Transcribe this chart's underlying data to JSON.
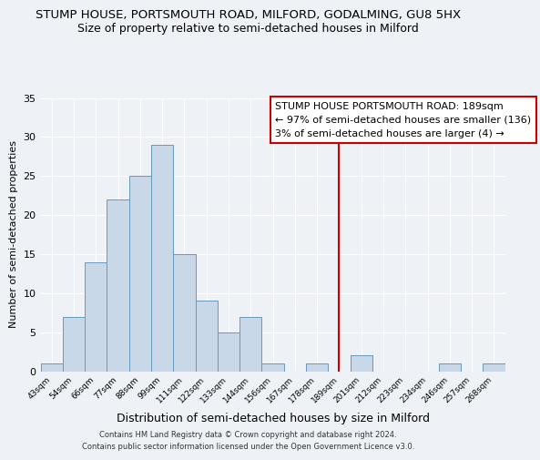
{
  "title": "STUMP HOUSE, PORTSMOUTH ROAD, MILFORD, GODALMING, GU8 5HX",
  "subtitle": "Size of property relative to semi-detached houses in Milford",
  "xlabel": "Distribution of semi-detached houses by size in Milford",
  "ylabel": "Number of semi-detached properties",
  "bin_labels": [
    "43sqm",
    "54sqm",
    "66sqm",
    "77sqm",
    "88sqm",
    "99sqm",
    "111sqm",
    "122sqm",
    "133sqm",
    "144sqm",
    "156sqm",
    "167sqm",
    "178sqm",
    "189sqm",
    "201sqm",
    "212sqm",
    "223sqm",
    "234sqm",
    "246sqm",
    "257sqm",
    "268sqm"
  ],
  "bar_heights": [
    1,
    7,
    14,
    22,
    25,
    29,
    15,
    9,
    5,
    7,
    1,
    0,
    1,
    0,
    2,
    0,
    0,
    0,
    1,
    0,
    1
  ],
  "bar_color": "#c8d8e8",
  "bar_edge_color": "#6699bb",
  "reference_line_x_label": "189sqm",
  "reference_line_color": "#cc0000",
  "annotation_title": "STUMP HOUSE PORTSMOUTH ROAD: 189sqm",
  "annotation_line1": "← 97% of semi-detached houses are smaller (136)",
  "annotation_line2": "3% of semi-detached houses are larger (4) →",
  "annotation_box_color": "#ffffff",
  "annotation_box_edge_color": "#cc0000",
  "ylim": [
    0,
    35
  ],
  "yticks": [
    0,
    5,
    10,
    15,
    20,
    25,
    30,
    35
  ],
  "footer_line1": "Contains HM Land Registry data © Crown copyright and database right 2024.",
  "footer_line2": "Contains public sector information licensed under the Open Government Licence v3.0.",
  "background_color": "#eef2f7",
  "grid_color": "#ffffff",
  "title_fontsize": 9.5,
  "subtitle_fontsize": 9,
  "xlabel_fontsize": 9,
  "ylabel_fontsize": 8,
  "annotation_fontsize": 8,
  "footer_fontsize": 6
}
